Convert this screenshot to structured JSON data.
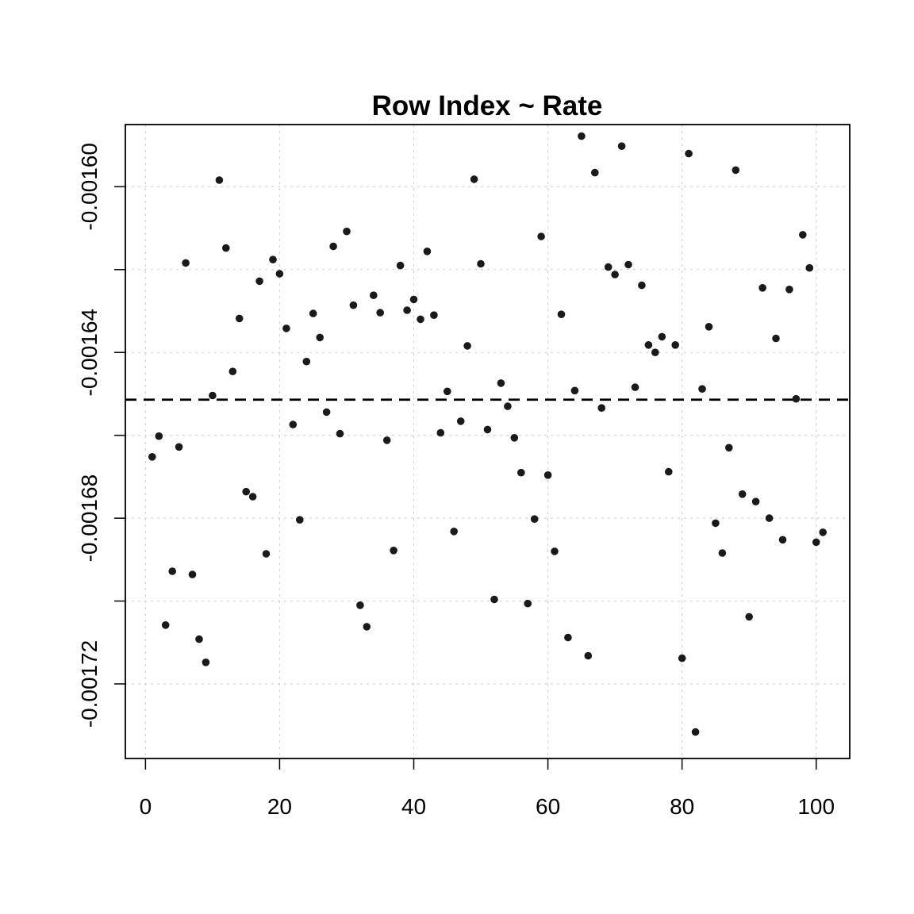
{
  "chart_data": {
    "type": "scatter",
    "title": "Row Index ~ Rate",
    "xlabel": "",
    "ylabel": "",
    "xlim": [
      -3,
      105
    ],
    "ylim": [
      -0.001738,
      -0.001585
    ],
    "x_ticks": [
      0,
      20,
      40,
      60,
      80,
      100
    ],
    "x_tick_labels": [
      "0",
      "20",
      "40",
      "60",
      "80",
      "100"
    ],
    "y_ticks": [
      -0.0016,
      -0.00162,
      -0.00164,
      -0.00166,
      -0.00168,
      -0.0017,
      -0.00172
    ],
    "y_tick_labels": [
      "-0.00160",
      "",
      "-0.00164",
      "",
      "-0.00168",
      "",
      "-0.00172"
    ],
    "grid": true,
    "reference_line": {
      "orientation": "horizontal",
      "y": -0.0016514,
      "style": "dashed"
    },
    "x": [
      1,
      2,
      3,
      4,
      5,
      6,
      7,
      8,
      9,
      10,
      11,
      12,
      13,
      14,
      15,
      16,
      17,
      18,
      19,
      20,
      21,
      22,
      23,
      24,
      25,
      26,
      27,
      28,
      29,
      30,
      31,
      32,
      33,
      34,
      35,
      36,
      37,
      38,
      39,
      40,
      41,
      42,
      43,
      44,
      45,
      46,
      47,
      48,
      49,
      50,
      51,
      52,
      53,
      54,
      55,
      56,
      57,
      58,
      59,
      60,
      61,
      62,
      63,
      64,
      65,
      66,
      67,
      68,
      69,
      70,
      71,
      72,
      73,
      74,
      75,
      76,
      77,
      78,
      79,
      80,
      81,
      82,
      83,
      84,
      85,
      86,
      87,
      88,
      89,
      90,
      91,
      92,
      93,
      94,
      95,
      96,
      97,
      98,
      99,
      100,
      101
    ],
    "y": [
      -0.0016652,
      -0.0016602,
      -0.0017058,
      -0.0016928,
      -0.0016628,
      -0.0016184,
      -0.0016936,
      -0.0017092,
      -0.0017148,
      -0.0016504,
      -0.0015984,
      -0.0016148,
      -0.0016446,
      -0.0016318,
      -0.0016736,
      -0.0016748,
      -0.0016228,
      -0.0016886,
      -0.0016176,
      -0.001621,
      -0.0016342,
      -0.0016574,
      -0.0016804,
      -0.0016422,
      -0.0016306,
      -0.0016364,
      -0.0016544,
      -0.0016144,
      -0.0016596,
      -0.0016108,
      -0.0016286,
      -0.001701,
      -0.0017062,
      -0.0016262,
      -0.0016304,
      -0.0016612,
      -0.0016878,
      -0.001619,
      -0.0016298,
      -0.0016272,
      -0.001632,
      -0.0016156,
      -0.001631,
      -0.0016594,
      -0.0016494,
      -0.0016832,
      -0.0016566,
      -0.0016384,
      -0.0015982,
      -0.0016186,
      -0.0016586,
      -0.0016996,
      -0.0016474,
      -0.001653,
      -0.0016606,
      -0.001669,
      -0.0017006,
      -0.0016802,
      -0.001612,
      -0.0016696,
      -0.001688,
      -0.0016308,
      -0.0017088,
      -0.0016492,
      -0.0015878,
      -0.0017132,
      -0.0015966,
      -0.0016534,
      -0.0016194,
      -0.0016212,
      -0.0015902,
      -0.0016188,
      -0.0016484,
      -0.0016238,
      -0.0016382,
      -0.00164,
      -0.0016362,
      -0.0016688,
      -0.0016382,
      -0.0017138,
      -0.001592,
      -0.0017316,
      -0.0016488,
      -0.0016338,
      -0.0016812,
      -0.0016884,
      -0.001663,
      -0.001596,
      -0.0016742,
      -0.0017038,
      -0.001676,
      -0.0016244,
      -0.00168,
      -0.0016366,
      -0.0016852,
      -0.0016248,
      -0.0016512,
      -0.0016116,
      -0.0016196,
      -0.0016858,
      -0.0016834
    ]
  }
}
